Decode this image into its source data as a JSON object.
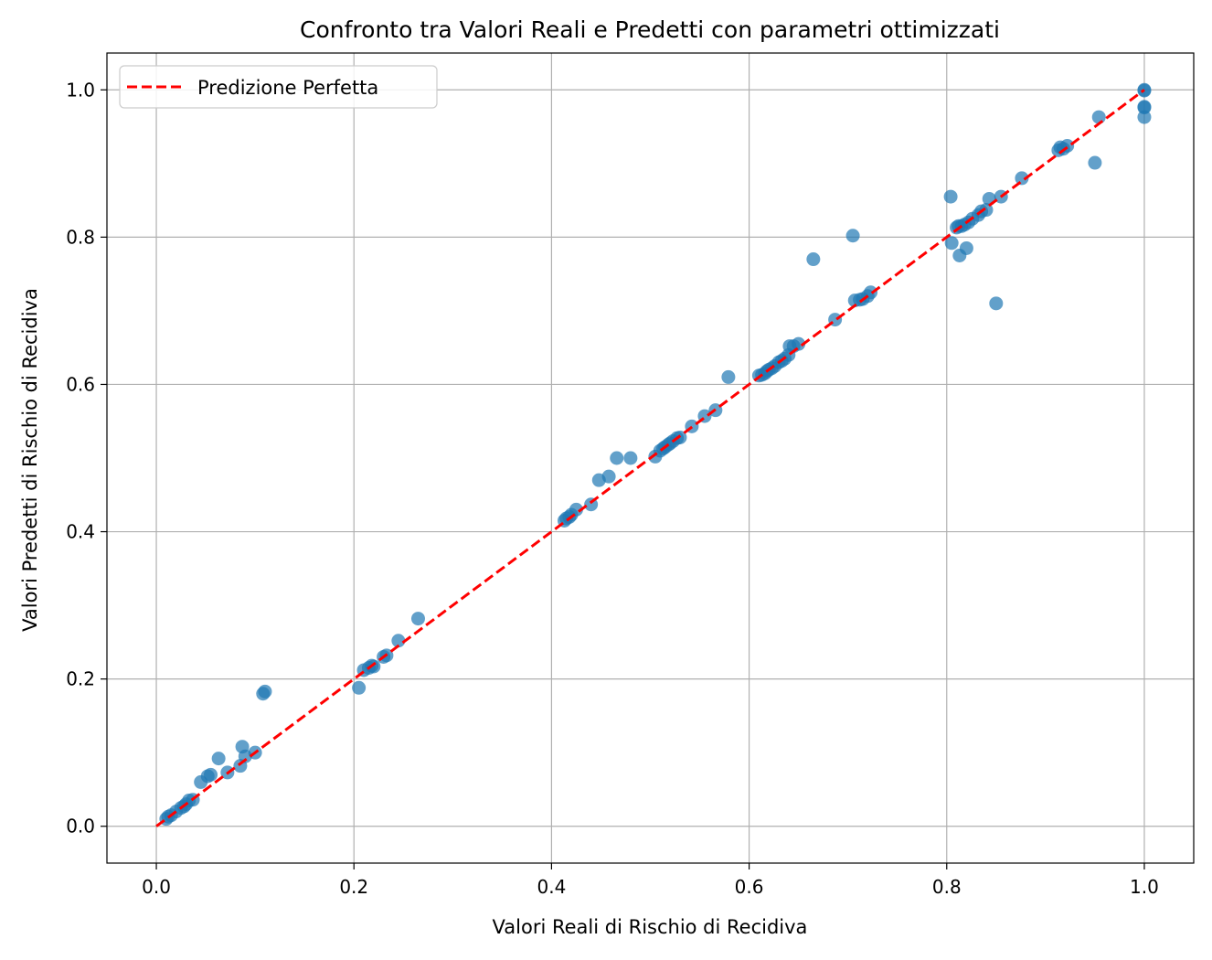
{
  "chart_data": {
    "type": "scatter",
    "title": "Confronto tra Valori Reali e Predetti  con parametri ottimizzati",
    "xlabel": "Valori Reali di Rischio di Recidiva",
    "ylabel": "Valori Predetti di Rischio di Recidiva",
    "xlim": [
      -0.05,
      1.05
    ],
    "ylim": [
      -0.05,
      1.05
    ],
    "xticks": [
      "0.0",
      "0.2",
      "0.4",
      "0.6",
      "0.8",
      "1.0"
    ],
    "yticks": [
      "0.0",
      "0.2",
      "0.4",
      "0.6",
      "0.8",
      "1.0"
    ],
    "grid": true,
    "legend": {
      "placement": "top-left",
      "entries": [
        "Predizione Perfetta"
      ]
    },
    "reference_line": {
      "name": "Predizione Perfetta",
      "x": [
        0.0,
        1.0
      ],
      "y": [
        0.0,
        1.0
      ],
      "style": "dashed",
      "color": "#ff0000"
    },
    "series": [
      {
        "color": "#1f77b4",
        "points": [
          [
            0.01,
            0.01
          ],
          [
            0.012,
            0.013
          ],
          [
            0.015,
            0.015
          ],
          [
            0.02,
            0.02
          ],
          [
            0.025,
            0.025
          ],
          [
            0.028,
            0.027
          ],
          [
            0.03,
            0.03
          ],
          [
            0.033,
            0.035
          ],
          [
            0.037,
            0.036
          ],
          [
            0.045,
            0.06
          ],
          [
            0.052,
            0.068
          ],
          [
            0.055,
            0.07
          ],
          [
            0.063,
            0.092
          ],
          [
            0.072,
            0.073
          ],
          [
            0.085,
            0.082
          ],
          [
            0.087,
            0.108
          ],
          [
            0.09,
            0.095
          ],
          [
            0.1,
            0.1
          ],
          [
            0.108,
            0.18
          ],
          [
            0.11,
            0.183
          ],
          [
            0.205,
            0.188
          ],
          [
            0.21,
            0.212
          ],
          [
            0.215,
            0.215
          ],
          [
            0.218,
            0.218
          ],
          [
            0.22,
            0.217
          ],
          [
            0.23,
            0.23
          ],
          [
            0.233,
            0.232
          ],
          [
            0.245,
            0.252
          ],
          [
            0.265,
            0.282
          ],
          [
            0.413,
            0.415
          ],
          [
            0.415,
            0.418
          ],
          [
            0.418,
            0.42
          ],
          [
            0.42,
            0.423
          ],
          [
            0.425,
            0.43
          ],
          [
            0.44,
            0.437
          ],
          [
            0.448,
            0.47
          ],
          [
            0.458,
            0.475
          ],
          [
            0.466,
            0.5
          ],
          [
            0.48,
            0.5
          ],
          [
            0.505,
            0.502
          ],
          [
            0.51,
            0.51
          ],
          [
            0.513,
            0.513
          ],
          [
            0.515,
            0.515
          ],
          [
            0.518,
            0.518
          ],
          [
            0.52,
            0.52
          ],
          [
            0.523,
            0.523
          ],
          [
            0.527,
            0.527
          ],
          [
            0.53,
            0.528
          ],
          [
            0.542,
            0.543
          ],
          [
            0.555,
            0.557
          ],
          [
            0.566,
            0.565
          ],
          [
            0.579,
            0.61
          ],
          [
            0.61,
            0.612
          ],
          [
            0.613,
            0.613
          ],
          [
            0.616,
            0.615
          ],
          [
            0.618,
            0.618
          ],
          [
            0.62,
            0.62
          ],
          [
            0.623,
            0.622
          ],
          [
            0.626,
            0.625
          ],
          [
            0.63,
            0.63
          ],
          [
            0.633,
            0.632
          ],
          [
            0.636,
            0.635
          ],
          [
            0.64,
            0.64
          ],
          [
            0.641,
            0.652
          ],
          [
            0.645,
            0.652
          ],
          [
            0.65,
            0.655
          ],
          [
            0.665,
            0.77
          ],
          [
            0.687,
            0.688
          ],
          [
            0.705,
            0.802
          ],
          [
            0.707,
            0.714
          ],
          [
            0.712,
            0.715
          ],
          [
            0.715,
            0.716
          ],
          [
            0.72,
            0.72
          ],
          [
            0.723,
            0.725
          ],
          [
            0.804,
            0.855
          ],
          [
            0.805,
            0.792
          ],
          [
            0.81,
            0.813
          ],
          [
            0.812,
            0.815
          ],
          [
            0.813,
            0.775
          ],
          [
            0.815,
            0.815
          ],
          [
            0.818,
            0.817
          ],
          [
            0.82,
            0.785
          ],
          [
            0.822,
            0.82
          ],
          [
            0.826,
            0.825
          ],
          [
            0.832,
            0.83
          ],
          [
            0.835,
            0.835
          ],
          [
            0.84,
            0.837
          ],
          [
            0.843,
            0.852
          ],
          [
            0.85,
            0.71
          ],
          [
            0.855,
            0.855
          ],
          [
            0.876,
            0.88
          ],
          [
            0.913,
            0.918
          ],
          [
            0.915,
            0.922
          ],
          [
            0.918,
            0.92
          ],
          [
            0.922,
            0.924
          ],
          [
            0.95,
            0.901
          ],
          [
            0.954,
            0.963
          ],
          [
            1.0,
            0.963
          ],
          [
            1.0,
            0.976
          ],
          [
            1.0,
            0.977
          ],
          [
            1.0,
            0.999
          ],
          [
            1.0,
            1.0
          ]
        ]
      }
    ]
  }
}
